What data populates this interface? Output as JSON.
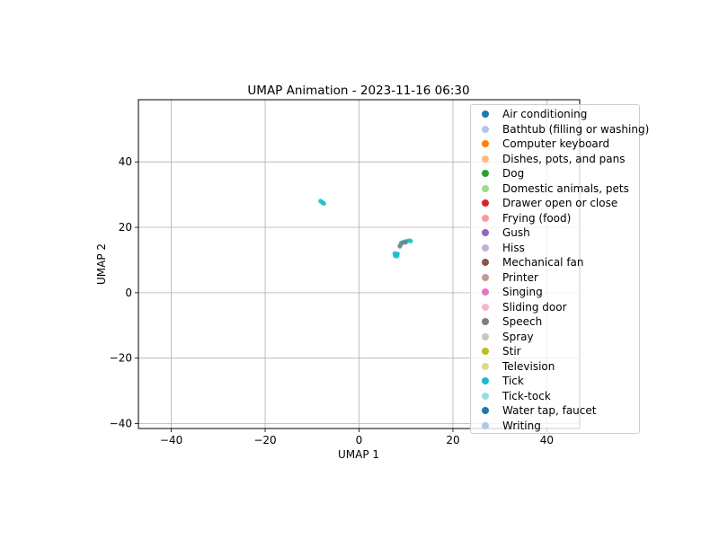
{
  "chart_data": {
    "type": "scatter",
    "title": "UMAP Animation - 2023-11-16 06:30",
    "xlabel": "UMAP 1",
    "ylabel": "UMAP 2",
    "xlim": [
      -47,
      47
    ],
    "ylim": [
      -41.5,
      59
    ],
    "xticks": [
      -40,
      -20,
      0,
      20,
      40
    ],
    "yticks": [
      -40,
      -20,
      0,
      20,
      40
    ],
    "xtick_labels": [
      "−40",
      "−20",
      "0",
      "20",
      "40"
    ],
    "ytick_labels": [
      "−40",
      "−20",
      "0",
      "20",
      "40"
    ],
    "grid": true,
    "legend_position": "right",
    "legend": [
      {
        "label": "Air conditioning",
        "color": "#1f77b4"
      },
      {
        "label": "Bathtub (filling or washing)",
        "color": "#aec7e8"
      },
      {
        "label": "Computer keyboard",
        "color": "#ff7f0e"
      },
      {
        "label": "Dishes, pots, and pans",
        "color": "#ffbb78"
      },
      {
        "label": "Dog",
        "color": "#2ca02c"
      },
      {
        "label": "Domestic animals, pets",
        "color": "#98df8a"
      },
      {
        "label": "Drawer open or close",
        "color": "#d62728"
      },
      {
        "label": "Frying (food)",
        "color": "#ff9896"
      },
      {
        "label": "Gush",
        "color": "#9467bd"
      },
      {
        "label": "Hiss",
        "color": "#c5b0d5"
      },
      {
        "label": "Mechanical fan",
        "color": "#8c564b"
      },
      {
        "label": "Printer",
        "color": "#c49c94"
      },
      {
        "label": "Singing",
        "color": "#e377c2"
      },
      {
        "label": "Sliding door",
        "color": "#f7b6d2"
      },
      {
        "label": "Speech",
        "color": "#7f7f7f"
      },
      {
        "label": "Spray",
        "color": "#c7c7c7"
      },
      {
        "label": "Stir",
        "color": "#bcbd22"
      },
      {
        "label": "Television",
        "color": "#dbdb8d"
      },
      {
        "label": "Tick",
        "color": "#17becf"
      },
      {
        "label": "Tick-tock",
        "color": "#9edae5"
      },
      {
        "label": "Water tap, faucet",
        "color": "#1f77b4"
      },
      {
        "label": "Writing",
        "color": "#aec7e8"
      }
    ],
    "series": [
      {
        "name": "Tick",
        "color": "#17becf",
        "points": [
          [
            -8.2,
            28.0
          ],
          [
            -7.8,
            27.6
          ],
          [
            -7.5,
            27.3
          ],
          [
            7.6,
            12.0
          ],
          [
            7.9,
            11.6
          ],
          [
            8.2,
            11.9
          ],
          [
            7.7,
            11.3
          ],
          [
            8.1,
            11.2
          ],
          [
            9.0,
            15.2
          ],
          [
            9.6,
            15.6
          ],
          [
            10.1,
            15.7
          ],
          [
            10.6,
            15.9
          ],
          [
            11.0,
            15.8
          ],
          [
            8.8,
            14.6
          ]
        ]
      },
      {
        "name": "Speech",
        "color": "#7f7f7f",
        "points": [
          [
            8.7,
            14.2
          ],
          [
            9.3,
            15.3
          ],
          [
            9.9,
            15.4
          ]
        ]
      }
    ]
  }
}
